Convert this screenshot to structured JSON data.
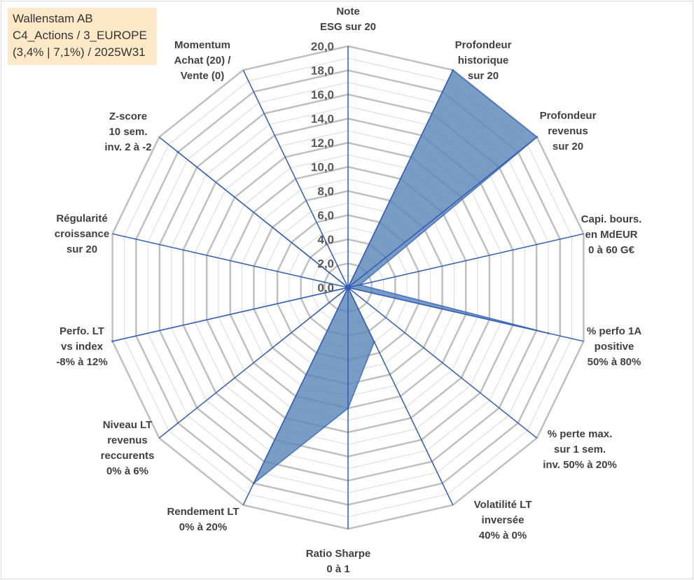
{
  "info": {
    "line1": "Wallenstam AB",
    "line2": "C4_Actions / 3_EUROPE",
    "line3": "(3,4% | 7,1%) / 2025W31"
  },
  "colors": {
    "fill": "#5b86b8",
    "stroke": "#4472c4",
    "spoke": "#2f5bb7",
    "grid_major": "#bfbfbf",
    "grid_minor": "#d9d9d9",
    "info_bg": "#fde9c7"
  },
  "chart_data": {
    "type": "radar",
    "title": "",
    "range": [
      0,
      20
    ],
    "major_step": 2,
    "minor_step": 1,
    "tick_labels": [
      "0,0",
      "2,0",
      "4,0",
      "6,0",
      "8,0",
      "10,0",
      "12,0",
      "14,0",
      "16,0",
      "18,0",
      "20,0"
    ],
    "categories": [
      [
        "Note",
        "ESG sur 20"
      ],
      [
        "Profondeur",
        "historique",
        "sur 20"
      ],
      [
        "Profondeur",
        "revenus",
        "sur 20"
      ],
      [
        "Capi. bours.",
        "en MdEUR",
        "0 à 60 G€"
      ],
      [
        "% perfo 1A",
        "positive",
        "50% à 80%"
      ],
      [
        "% perte max.",
        "sur 1 sem.",
        "inv. 50% à 20%"
      ],
      [
        "Volatilité LT",
        "inversée",
        "40% à 0%"
      ],
      [
        "Ratio Sharpe",
        "0 à 1"
      ],
      [
        "Rendement LT",
        "0% à 20%"
      ],
      [
        "Niveau LT",
        "revenus",
        "reccurents",
        "0% à 6%"
      ],
      [
        "Perfo. LT",
        "vs index",
        "-8% à 12%"
      ],
      [
        "Régularité",
        "croissance",
        "sur 20"
      ],
      [
        "Z-score",
        "10 sem.",
        "inv. 2 à -2"
      ],
      [
        "Momentum",
        "Achat (20) /",
        "Vente (0)"
      ]
    ],
    "series": [
      {
        "values": [
          0,
          20,
          20,
          1,
          17,
          0,
          5,
          10,
          18,
          0,
          20,
          0,
          18,
          0
        ]
      }
    ]
  }
}
